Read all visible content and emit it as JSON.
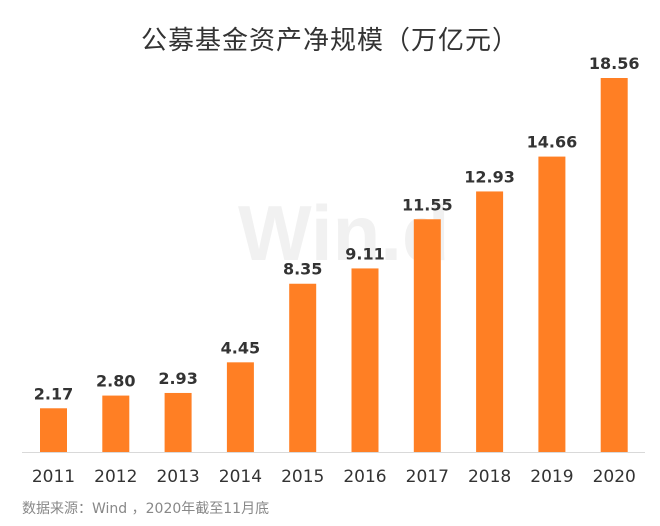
{
  "chart_data": {
    "type": "bar",
    "title": "公募基金资产净规模（万亿元）",
    "categories": [
      "2011",
      "2012",
      "2013",
      "2014",
      "2015",
      "2016",
      "2017",
      "2018",
      "2019",
      "2020"
    ],
    "values": [
      2.17,
      2.8,
      2.93,
      4.45,
      8.35,
      9.11,
      11.55,
      12.93,
      14.66,
      18.56
    ],
    "value_labels": [
      "2.17",
      "2.80",
      "2.93",
      "4.45",
      "8.35",
      "9.11",
      "11.55",
      "12.93",
      "14.66",
      "18.56"
    ],
    "ylim": [
      0,
      18.56
    ],
    "bar_color": "#ff7f24",
    "grid": false,
    "legend": "none"
  },
  "watermark": "Win.d",
  "source_note": "数据来源：Wind ，2020年截至11月底"
}
